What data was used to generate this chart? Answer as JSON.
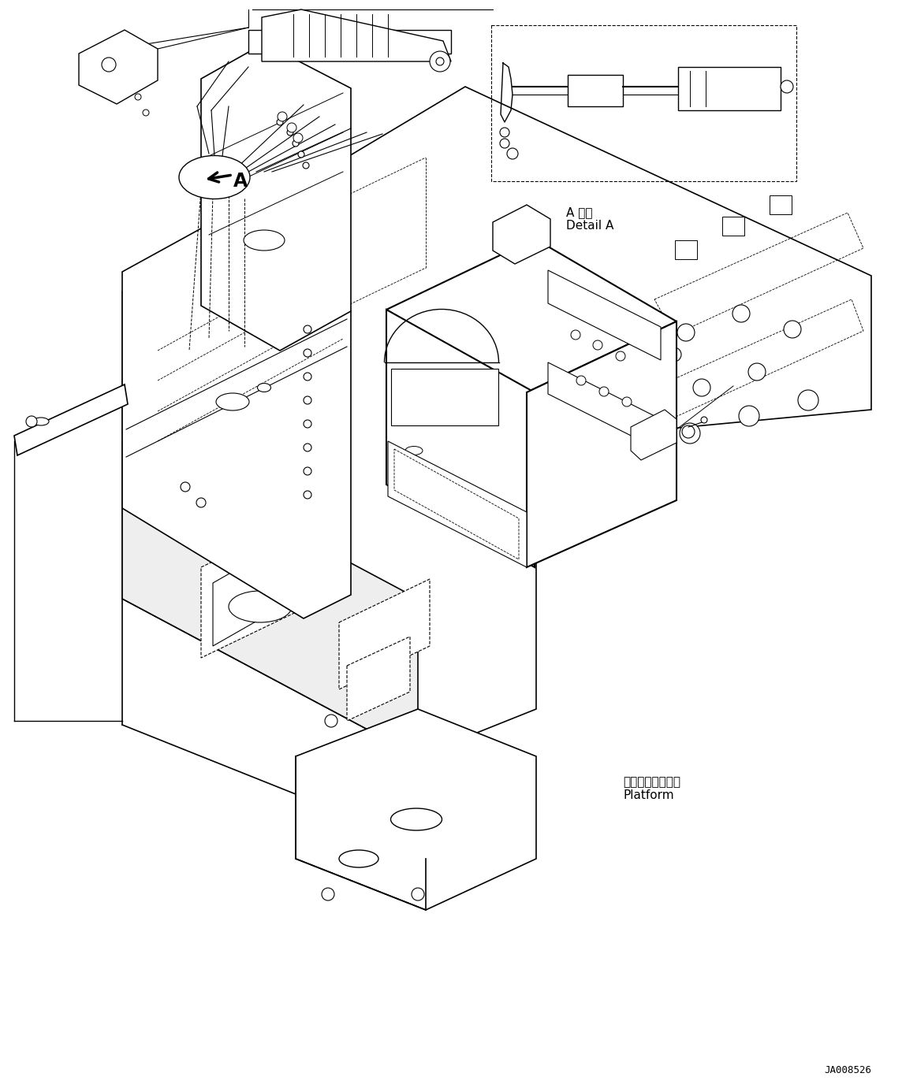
{
  "background_color": "#ffffff",
  "line_color": "#000000",
  "text_color": "#000000",
  "detail_a_label": "A 詳細\nDetail A",
  "platform_label": "プラットフォーム\nPlatform",
  "part_number": "JA008526",
  "arrow_label": "A",
  "fig_width": 11.63,
  "fig_height": 13.81,
  "dpi": 100
}
